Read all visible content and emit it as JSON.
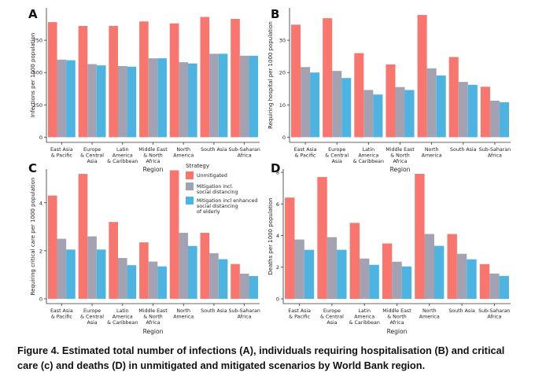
{
  "colors": {
    "unmitigated": "#f8766d",
    "mitigation_sd": "#a2a2b2",
    "mitigation_enhanced": "#4db3e0",
    "axis": "#333333",
    "text": "#222222"
  },
  "legend": {
    "title": "Strategy",
    "items": [
      {
        "label_lines": [
          "Unmitigated"
        ],
        "color": "#f8766d"
      },
      {
        "label_lines": [
          "Mitigation incl.",
          "social distancing"
        ],
        "color": "#a2a2b2"
      },
      {
        "label_lines": [
          "Mitigation incl enhanced",
          "social distancing",
          "of elderly"
        ],
        "color": "#4db3e0"
      }
    ]
  },
  "chart_data": [
    {
      "type": "bar",
      "panel_label": "A",
      "ylabel": "Infections per 1000 population",
      "xlabel": "Region",
      "categories": [
        [
          "East Asia",
          "& Pacific"
        ],
        [
          "Europe",
          "& Central",
          "Asia"
        ],
        [
          "Latin",
          "America",
          "& Caribbean"
        ],
        [
          "Middle East",
          "& North",
          "Africa"
        ],
        [
          "North",
          "America"
        ],
        [
          "South Asia"
        ],
        [
          "Sub-Saharan",
          "Africa"
        ]
      ],
      "ylim": [
        -40,
        1000
      ],
      "yticks": [
        0,
        250,
        500,
        750
      ],
      "series": [
        {
          "name": "Unmitigated",
          "values": [
            890,
            860,
            860,
            895,
            880,
            930,
            915
          ]
        },
        {
          "name": "Mitigation incl. social distancing",
          "values": [
            600,
            565,
            550,
            610,
            580,
            645,
            630
          ]
        },
        {
          "name": "Mitigation incl enhanced social distancing of elderly",
          "values": [
            595,
            555,
            545,
            610,
            570,
            645,
            630
          ]
        }
      ]
    },
    {
      "type": "bar",
      "panel_label": "B",
      "ylabel": "Requiring hospital per 1000 population",
      "xlabel": "Region",
      "categories": [
        [
          "East Asia",
          "& Pacific"
        ],
        [
          "Europe",
          "& Central",
          "Asia"
        ],
        [
          "Latin",
          "America",
          "& Caribbean"
        ],
        [
          "Middle East",
          "& North",
          "Africa"
        ],
        [
          "North",
          "America"
        ],
        [
          "South Asia"
        ],
        [
          "Sub-Saharan",
          "Africa"
        ]
      ],
      "ylim": [
        -1.6,
        40
      ],
      "yticks": [
        0,
        10,
        20,
        30
      ],
      "series": [
        {
          "name": "Unmitigated",
          "values": [
            34.8,
            36.8,
            26.0,
            22.5,
            37.8,
            24.8,
            15.6
          ]
        },
        {
          "name": "Mitigation incl. social distancing",
          "values": [
            21.7,
            20.5,
            14.6,
            15.5,
            21.3,
            17.1,
            11.3
          ]
        },
        {
          "name": "Mitigation incl enhanced social distancing of elderly",
          "values": [
            20.0,
            18.3,
            13.2,
            14.6,
            19.1,
            16.2,
            10.8
          ]
        }
      ]
    },
    {
      "type": "bar",
      "panel_label": "C",
      "ylabel": "Requiring critical care per 1000 population",
      "xlabel": "Region",
      "categories": [
        [
          "East Asia",
          "& Pacific"
        ],
        [
          "Europe",
          "& Central",
          "Asia"
        ],
        [
          "Latin",
          "America",
          "& Caribbean"
        ],
        [
          "Middle East",
          "& North",
          "Africa"
        ],
        [
          "North",
          "America"
        ],
        [
          "South Asia"
        ],
        [
          "Sub-Saharan",
          "Africa"
        ]
      ],
      "ylim": [
        -0.2,
        5.4
      ],
      "yticks": [
        0,
        2,
        4
      ],
      "series": [
        {
          "name": "Unmitigated",
          "values": [
            4.3,
            5.2,
            3.2,
            2.35,
            5.35,
            2.75,
            1.45
          ]
        },
        {
          "name": "Mitigation incl. social distancing",
          "values": [
            2.5,
            2.6,
            1.7,
            1.55,
            2.75,
            1.9,
            1.05
          ]
        },
        {
          "name": "Mitigation incl enhanced social distancing of elderly",
          "values": [
            2.05,
            2.05,
            1.4,
            1.35,
            2.2,
            1.65,
            0.95
          ]
        }
      ]
    },
    {
      "type": "bar",
      "panel_label": "D",
      "ylabel": "Deaths per 1000 population",
      "xlabel": "Region",
      "categories": [
        [
          "East Asia",
          "& Pacific"
        ],
        [
          "Europe",
          "& Central",
          "Asia"
        ],
        [
          "Latin",
          "America",
          "& Caribbean"
        ],
        [
          "Middle East",
          "& North",
          "Africa"
        ],
        [
          "North",
          "America"
        ],
        [
          "South Asia"
        ],
        [
          "Sub-Saharan",
          "Africa"
        ]
      ],
      "ylim": [
        -0.3,
        8.2
      ],
      "yticks": [
        0,
        2,
        4,
        6,
        8
      ],
      "series": [
        {
          "name": "Unmitigated",
          "values": [
            6.4,
            7.7,
            4.8,
            3.5,
            7.9,
            4.1,
            2.2
          ]
        },
        {
          "name": "Mitigation incl. social distancing",
          "values": [
            3.75,
            3.9,
            2.55,
            2.35,
            4.1,
            2.85,
            1.6
          ]
        },
        {
          "name": "Mitigation incl enhanced social distancing of elderly",
          "values": [
            3.1,
            3.1,
            2.15,
            2.05,
            3.35,
            2.5,
            1.45
          ]
        }
      ]
    }
  ],
  "caption": "Figure 4. Estimated total number of infections (A), individuals requiring hospitalisation (B) and critical care (c) and deaths (D) in unmitigated and mitigated scenarios by World Bank region."
}
